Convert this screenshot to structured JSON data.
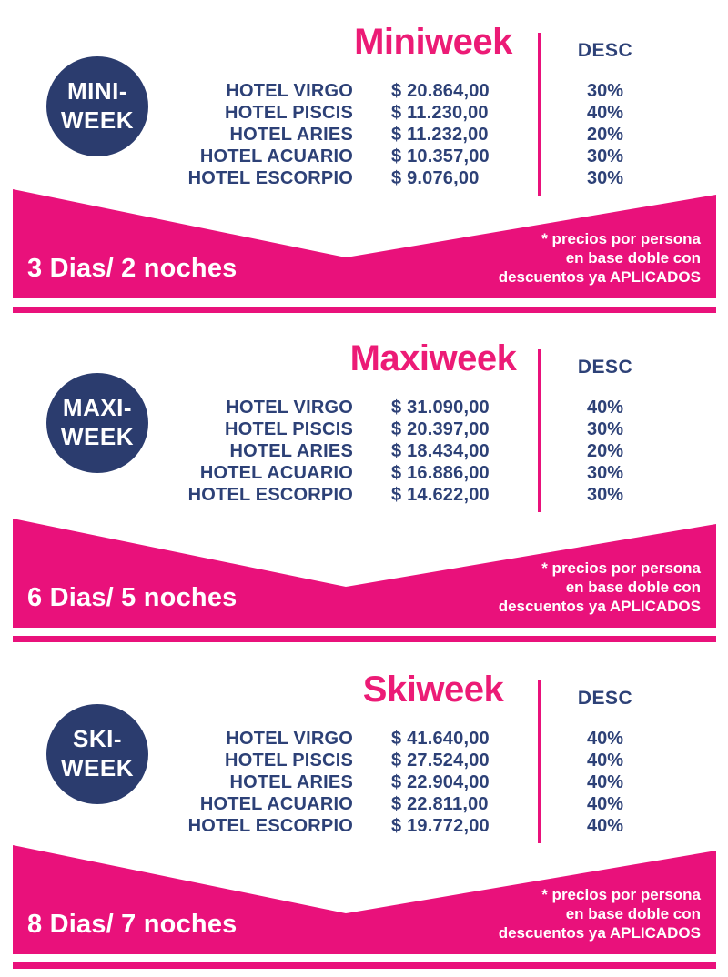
{
  "colors": {
    "pink": "#e9117b",
    "title_pink": "#ec1b76",
    "navy_circle": "#2b3c6e",
    "navy_text": "#2d4177",
    "white": "#ffffff"
  },
  "sections": [
    {
      "badge_line1": "MINI-",
      "badge_line2": "WEEK",
      "title": "Miniweek",
      "desc_header": "DESC",
      "rows": [
        {
          "hotel": "HOTEL VIRGO",
          "price": "$ 20.864,00",
          "desc": "30%"
        },
        {
          "hotel": "HOTEL PISCIS",
          "price": "$ 11.230,00",
          "desc": "40%"
        },
        {
          "hotel": "HOTEL ARIES",
          "price": "$ 11.232,00",
          "desc": "20%"
        },
        {
          "hotel": "HOTEL ACUARIO",
          "price": "$ 10.357,00",
          "desc": "30%"
        },
        {
          "hotel": "HOTEL ESCORPIO",
          "price": "$ 9.076,00",
          "desc": "30%"
        }
      ],
      "duration": "3 Dias/ 2 noches",
      "note_lines": [
        "* precios por persona",
        "en base doble con",
        "descuentos ya APLICADOS"
      ]
    },
    {
      "badge_line1": "MAXI-",
      "badge_line2": "WEEK",
      "title": "Maxiweek",
      "desc_header": "DESC",
      "rows": [
        {
          "hotel": "HOTEL VIRGO",
          "price": "$ 31.090,00",
          "desc": "40%"
        },
        {
          "hotel": "HOTEL PISCIS",
          "price": "$ 20.397,00",
          "desc": "30%"
        },
        {
          "hotel": "HOTEL ARIES",
          "price": "$ 18.434,00",
          "desc": "20%"
        },
        {
          "hotel": "HOTEL ACUARIO",
          "price": "$ 16.886,00",
          "desc": "30%"
        },
        {
          "hotel": "HOTEL ESCORPIO",
          "price": "$ 14.622,00",
          "desc": "30%"
        }
      ],
      "duration": "6 Dias/ 5 noches",
      "note_lines": [
        "* precios por persona",
        "en base doble con",
        "descuentos ya APLICADOS"
      ]
    },
    {
      "badge_line1": "SKI-",
      "badge_line2": "WEEK",
      "title": "Skiweek",
      "desc_header": "DESC",
      "rows": [
        {
          "hotel": "HOTEL VIRGO",
          "price": "$ 41.640,00",
          "desc": "40%"
        },
        {
          "hotel": "HOTEL PISCIS",
          "price": "$ 27.524,00",
          "desc": "40%"
        },
        {
          "hotel": "HOTEL ARIES",
          "price": "$ 22.904,00",
          "desc": "40%"
        },
        {
          "hotel": "HOTEL ACUARIO",
          "price": "$ 22.811,00",
          "desc": "40%"
        },
        {
          "hotel": "HOTEL ESCORPIO",
          "price": "$ 19.772,00",
          "desc": "40%"
        }
      ],
      "duration": "8 Dias/ 7 noches",
      "note_lines": [
        "* precios por persona",
        "en base doble con",
        "descuentos ya APLICADOS"
      ]
    }
  ]
}
